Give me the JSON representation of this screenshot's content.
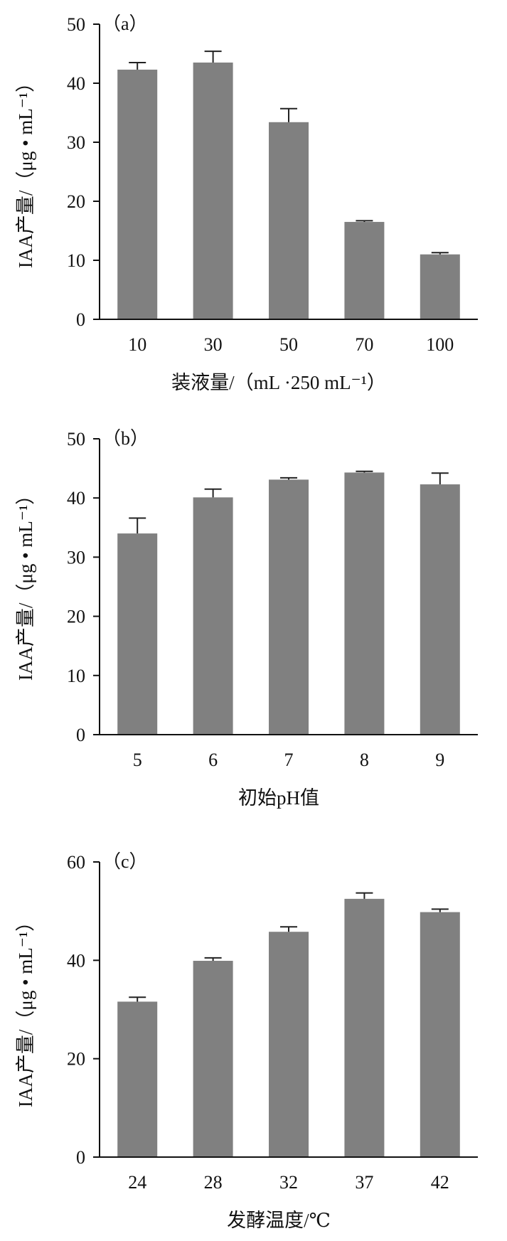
{
  "chart_data": [
    {
      "type": "bar",
      "panel_label": "（a）",
      "categories": [
        "10",
        "30",
        "50",
        "70",
        "100"
      ],
      "values": [
        42.3,
        43.5,
        33.4,
        16.5,
        11.0
      ],
      "errors": [
        1.2,
        1.9,
        2.3,
        0.2,
        0.3
      ],
      "xlabel": "装液量/（mL ·250 mL⁻¹）",
      "ylabel": "IAA产量/（μg • mL⁻¹）",
      "ylim": [
        0,
        50
      ],
      "yticks": [
        "0",
        "10",
        "20",
        "30",
        "40",
        "50"
      ],
      "bar_color": "#808080",
      "grid": false
    },
    {
      "type": "bar",
      "panel_label": "（b）",
      "categories": [
        "5",
        "6",
        "7",
        "8",
        "9"
      ],
      "values": [
        34.0,
        40.1,
        43.1,
        44.3,
        42.3
      ],
      "errors": [
        2.6,
        1.4,
        0.3,
        0.2,
        1.9
      ],
      "xlabel": "初始pH值",
      "ylabel": "IAA产量/（μg • mL⁻¹）",
      "ylim": [
        0,
        50
      ],
      "yticks": [
        "0",
        "10",
        "20",
        "30",
        "40",
        "50"
      ],
      "bar_color": "#808080",
      "grid": false
    },
    {
      "type": "bar",
      "panel_label": "（c）",
      "categories": [
        "24",
        "28",
        "32",
        "37",
        "42"
      ],
      "values": [
        31.6,
        39.9,
        45.8,
        52.5,
        49.8
      ],
      "errors": [
        0.9,
        0.6,
        1.0,
        1.2,
        0.6
      ],
      "xlabel": "发酵温度/℃",
      "ylabel": "IAA产量/（μg • mL⁻¹）",
      "ylim": [
        0,
        60
      ],
      "yticks": [
        "0",
        "20",
        "40",
        "60"
      ],
      "bar_color": "#808080",
      "grid": false
    }
  ]
}
